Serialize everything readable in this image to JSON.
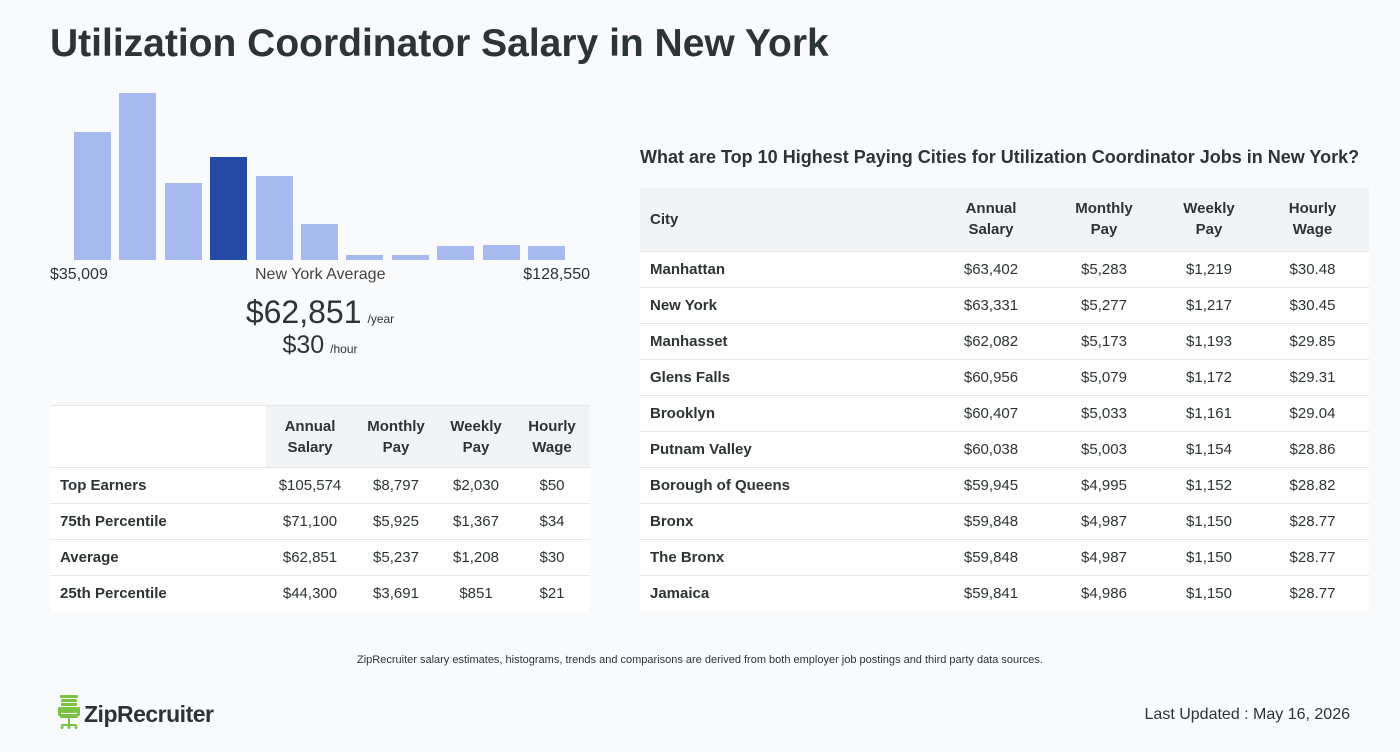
{
  "page": {
    "title": "Utilization Coordinator Salary in New York"
  },
  "chart_data": {
    "type": "bar",
    "title": "",
    "xlabel": "",
    "ylabel": "",
    "categories": [
      "1",
      "2",
      "3",
      "4",
      "5",
      "6",
      "7",
      "8",
      "9",
      "10",
      "11"
    ],
    "values": [
      117,
      152,
      70,
      94,
      77,
      33,
      5,
      5,
      13,
      14,
      13
    ],
    "highlight_index": 3,
    "ylim": [
      0,
      155
    ],
    "colors": {
      "bar": "#a8b9f0",
      "highlight": "#2549a4"
    }
  },
  "histogram": {
    "min_label": "$35,009",
    "avg_label": "New York Average",
    "max_label": "$128,550",
    "yearly_value": "$62,851",
    "yearly_unit": "/year",
    "hourly_value": "$30",
    "hourly_unit": "/hour"
  },
  "percentile_table": {
    "headers": [
      {
        "line1": "Annual",
        "line2": "Salary"
      },
      {
        "line1": "Monthly",
        "line2": "Pay"
      },
      {
        "line1": "Weekly",
        "line2": "Pay"
      },
      {
        "line1": "Hourly",
        "line2": "Wage"
      }
    ],
    "rows": [
      {
        "label": "Top Earners",
        "cells": [
          "$105,574",
          "$8,797",
          "$2,030",
          "$50"
        ]
      },
      {
        "label": "75th Percentile",
        "cells": [
          "$71,100",
          "$5,925",
          "$1,367",
          "$34"
        ]
      },
      {
        "label": "Average",
        "cells": [
          "$62,851",
          "$5,237",
          "$1,208",
          "$30"
        ]
      },
      {
        "label": "25th Percentile",
        "cells": [
          "$44,300",
          "$3,691",
          "$851",
          "$21"
        ]
      }
    ]
  },
  "city_section": {
    "heading": "What are Top 10 Highest Paying Cities for Utilization Coordinator Jobs in New York?",
    "city_header": "City",
    "headers": [
      {
        "line1": "Annual",
        "line2": "Salary"
      },
      {
        "line1": "Monthly",
        "line2": "Pay"
      },
      {
        "line1": "Weekly",
        "line2": "Pay"
      },
      {
        "line1": "Hourly",
        "line2": "Wage"
      }
    ],
    "rows": [
      {
        "label": "Manhattan",
        "cells": [
          "$63,402",
          "$5,283",
          "$1,219",
          "$30.48"
        ]
      },
      {
        "label": "New York",
        "cells": [
          "$63,331",
          "$5,277",
          "$1,217",
          "$30.45"
        ]
      },
      {
        "label": "Manhasset",
        "cells": [
          "$62,082",
          "$5,173",
          "$1,193",
          "$29.85"
        ]
      },
      {
        "label": "Glens Falls",
        "cells": [
          "$60,956",
          "$5,079",
          "$1,172",
          "$29.31"
        ]
      },
      {
        "label": "Brooklyn",
        "cells": [
          "$60,407",
          "$5,033",
          "$1,161",
          "$29.04"
        ]
      },
      {
        "label": "Putnam Valley",
        "cells": [
          "$60,038",
          "$5,003",
          "$1,154",
          "$28.86"
        ]
      },
      {
        "label": "Borough of Queens",
        "cells": [
          "$59,945",
          "$4,995",
          "$1,152",
          "$28.82"
        ]
      },
      {
        "label": "Bronx",
        "cells": [
          "$59,848",
          "$4,987",
          "$1,150",
          "$28.77"
        ]
      },
      {
        "label": "The Bronx",
        "cells": [
          "$59,848",
          "$4,987",
          "$1,150",
          "$28.77"
        ]
      },
      {
        "label": "Jamaica",
        "cells": [
          "$59,841",
          "$4,986",
          "$1,150",
          "$28.77"
        ]
      }
    ]
  },
  "footer": {
    "note": "ZipRecruiter salary estimates, histograms, trends and comparisons are derived from both employer job postings and third party data sources.",
    "logo_text": "ZipRecruiter",
    "logo_icon": "zip-chair-icon",
    "logo_color": "#7cc242",
    "updated": "Last Updated : May 16, 2026"
  }
}
